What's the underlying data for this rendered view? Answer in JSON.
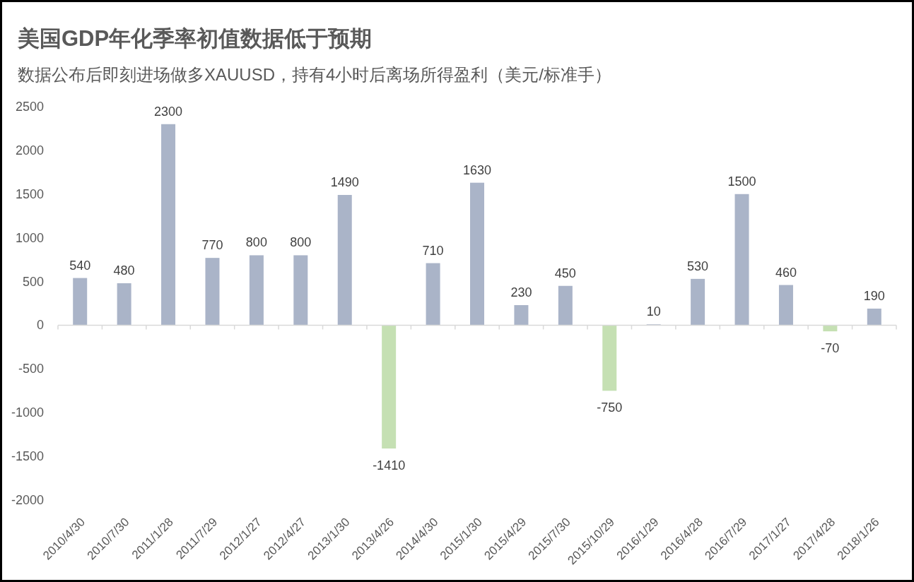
{
  "chart_data": {
    "type": "bar",
    "title": "美国GDP年化季率初值数据低于预期",
    "subtitle": "数据公布后即刻进场做多XAUUSD，持有4小时后离场所得盈利（美元/标准手）",
    "categories": [
      "2010/4/30",
      "2010/7/30",
      "2011/1/28",
      "2011/7/29",
      "2012/1/27",
      "2012/4/27",
      "2013/1/30",
      "2013/4/26",
      "2014/4/30",
      "2015/1/30",
      "2015/4/29",
      "2015/7/30",
      "2015/10/29",
      "2016/1/29",
      "2016/4/28",
      "2016/7/29",
      "2017/1/27",
      "2017/4/28",
      "2018/1/26"
    ],
    "values": [
      540,
      480,
      2300,
      770,
      800,
      800,
      1490,
      -1410,
      710,
      1630,
      230,
      450,
      -750,
      10,
      530,
      1500,
      460,
      -70,
      190
    ],
    "colors": [
      "#aab4c8",
      "#aab4c8",
      "#aab4c8",
      "#aab4c8",
      "#aab4c8",
      "#aab4c8",
      "#aab4c8",
      "#c5e0b3",
      "#aab4c8",
      "#aab4c8",
      "#aab4c8",
      "#aab4c8",
      "#c5e0b3",
      "#aab4c8",
      "#aab4c8",
      "#aab4c8",
      "#aab4c8",
      "#c5e0b3",
      "#aab4c8"
    ],
    "ylim": [
      -2000,
      2500
    ],
    "yticks": [
      -2000,
      -1500,
      -1000,
      -500,
      0,
      500,
      1000,
      1500,
      2000,
      2500
    ],
    "data_labels": true
  }
}
